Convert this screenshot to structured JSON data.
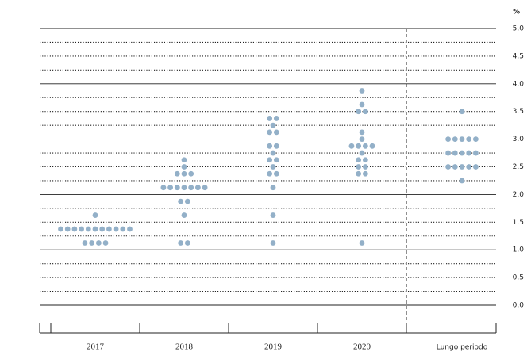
{
  "chart_data": {
    "type": "dot",
    "unit_label": "%",
    "categories": [
      "2017",
      "2018",
      "2019",
      "2020",
      "Lungo periodo"
    ],
    "dots": [
      [
        {
          "value": 1.125,
          "count": 4
        },
        {
          "value": 1.375,
          "count": 11
        },
        {
          "value": 1.625,
          "count": 1
        }
      ],
      [
        {
          "value": 1.125,
          "count": 2
        },
        {
          "value": 1.625,
          "count": 1
        },
        {
          "value": 1.875,
          "count": 2
        },
        {
          "value": 2.125,
          "count": 7
        },
        {
          "value": 2.375,
          "count": 3
        },
        {
          "value": 2.5,
          "count": 1
        },
        {
          "value": 2.625,
          "count": 1
        }
      ],
      [
        {
          "value": 1.125,
          "count": 1
        },
        {
          "value": 1.625,
          "count": 1
        },
        {
          "value": 2.125,
          "count": 1
        },
        {
          "value": 2.375,
          "count": 2
        },
        {
          "value": 2.5,
          "count": 1
        },
        {
          "value": 2.625,
          "count": 2
        },
        {
          "value": 2.75,
          "count": 1
        },
        {
          "value": 2.875,
          "count": 2
        },
        {
          "value": 3.125,
          "count": 2
        },
        {
          "value": 3.25,
          "count": 1
        },
        {
          "value": 3.375,
          "count": 2
        }
      ],
      [
        {
          "value": 1.125,
          "count": 1
        },
        {
          "value": 2.375,
          "count": 2
        },
        {
          "value": 2.5,
          "count": 2
        },
        {
          "value": 2.625,
          "count": 2
        },
        {
          "value": 2.75,
          "count": 1
        },
        {
          "value": 2.875,
          "count": 4
        },
        {
          "value": 3.0,
          "count": 1
        },
        {
          "value": 3.125,
          "count": 1
        },
        {
          "value": 3.5,
          "count": 2
        },
        {
          "value": 3.625,
          "count": 1
        },
        {
          "value": 3.875,
          "count": 1
        }
      ],
      [
        {
          "value": 2.25,
          "count": 1
        },
        {
          "value": 2.5,
          "count": 5
        },
        {
          "value": 2.75,
          "count": 5
        },
        {
          "value": 3.0,
          "count": 5
        },
        {
          "value": 3.5,
          "count": 1
        }
      ]
    ],
    "color": "#93b0c8",
    "ylim": [
      0,
      5
    ],
    "yticks": [
      {
        "value": 0,
        "label": "0.0"
      },
      {
        "value": 0.5,
        "label": "0.5"
      },
      {
        "value": 1,
        "label": "1.0"
      },
      {
        "value": 1.5,
        "label": "1.5"
      },
      {
        "value": 2,
        "label": "2.0"
      },
      {
        "value": 2.5,
        "label": "2.5"
      },
      {
        "value": 3,
        "label": "3.0"
      },
      {
        "value": 3.5,
        "label": "3.5"
      },
      {
        "value": 4,
        "label": "4.0"
      },
      {
        "value": 4.5,
        "label": "4.5"
      },
      {
        "value": 5,
        "label": "5.0"
      }
    ],
    "ygrid": [
      0,
      0.25,
      0.5,
      0.75,
      1,
      1.25,
      1.5,
      1.75,
      2,
      2.25,
      2.5,
      2.75,
      3,
      3.25,
      3.5,
      3.75,
      4,
      4.25,
      4.5,
      4.75,
      5
    ]
  }
}
